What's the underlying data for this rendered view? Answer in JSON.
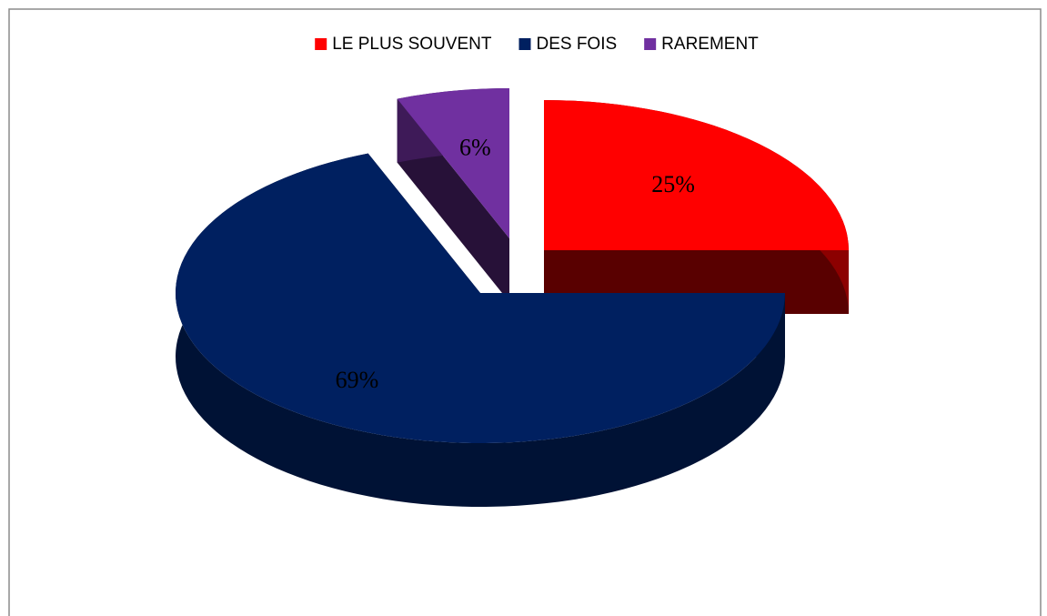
{
  "chart_data": {
    "type": "pie",
    "categories": [
      "LE PLUS SOUVENT",
      "DES FOIS",
      "RAREMENT"
    ],
    "values": [
      25,
      69,
      6
    ],
    "value_labels": [
      "25%",
      "69%",
      "6%"
    ],
    "colors": [
      "#ff0000",
      "#002060",
      "#7030a0"
    ],
    "legend": "top"
  }
}
